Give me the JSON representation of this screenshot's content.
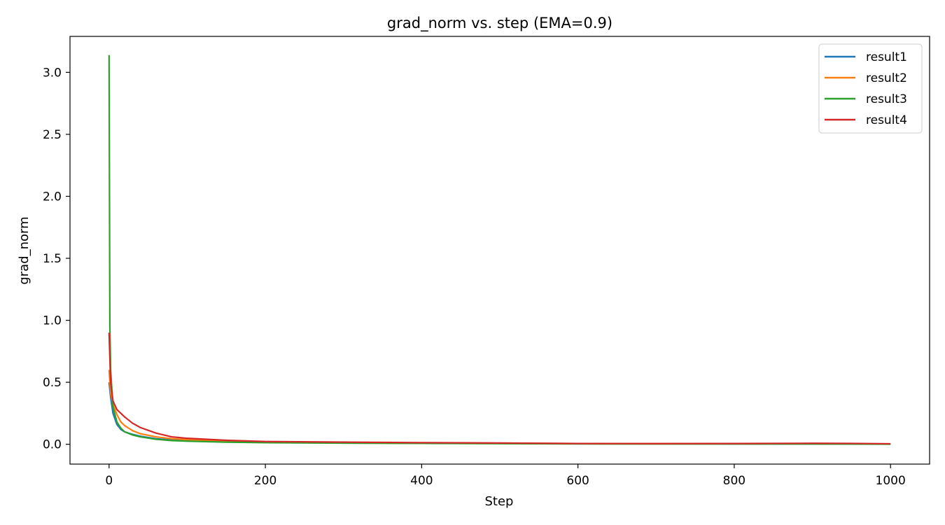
{
  "chart_data": {
    "type": "line",
    "title": "grad_norm vs. step (EMA=0.9)",
    "xlabel": "Step",
    "ylabel": "grad_norm",
    "xlim": [
      -50,
      1050
    ],
    "ylim": [
      -0.16,
      3.29
    ],
    "xticks": [
      0,
      200,
      400,
      600,
      800,
      1000
    ],
    "yticks": [
      0.0,
      0.5,
      1.0,
      1.5,
      2.0,
      2.5,
      3.0
    ],
    "xtick_labels": [
      "0",
      "200",
      "400",
      "600",
      "800",
      "1000"
    ],
    "ytick_labels": [
      "0.0",
      "0.5",
      "1.0",
      "1.5",
      "2.0",
      "2.5",
      "3.0"
    ],
    "grid": false,
    "legend_position": "top-right",
    "series": [
      {
        "name": "result1",
        "color": "#1f77b4",
        "points": [
          [
            0,
            0.5
          ],
          [
            2,
            0.38
          ],
          [
            5,
            0.25
          ],
          [
            10,
            0.16
          ],
          [
            15,
            0.12
          ],
          [
            20,
            0.1
          ],
          [
            30,
            0.08
          ],
          [
            40,
            0.065
          ],
          [
            60,
            0.045
          ],
          [
            80,
            0.035
          ],
          [
            100,
            0.03
          ],
          [
            150,
            0.022
          ],
          [
            200,
            0.018
          ],
          [
            300,
            0.012
          ],
          [
            400,
            0.01
          ],
          [
            500,
            0.008
          ],
          [
            600,
            0.005
          ],
          [
            700,
            0.004
          ],
          [
            800,
            0.003
          ],
          [
            900,
            0.003
          ],
          [
            1000,
            0.002
          ]
        ]
      },
      {
        "name": "result2",
        "color": "#ff7f0e",
        "points": [
          [
            0,
            0.6
          ],
          [
            2,
            0.42
          ],
          [
            5,
            0.32
          ],
          [
            10,
            0.24
          ],
          [
            15,
            0.18
          ],
          [
            20,
            0.15
          ],
          [
            30,
            0.11
          ],
          [
            40,
            0.085
          ],
          [
            60,
            0.06
          ],
          [
            80,
            0.045
          ],
          [
            100,
            0.037
          ],
          [
            150,
            0.027
          ],
          [
            200,
            0.02
          ],
          [
            300,
            0.014
          ],
          [
            400,
            0.011
          ],
          [
            500,
            0.009
          ],
          [
            600,
            0.006
          ],
          [
            700,
            0.005
          ],
          [
            800,
            0.004
          ],
          [
            900,
            0.004
          ],
          [
            1000,
            0.003
          ]
        ]
      },
      {
        "name": "result3",
        "color": "#2ca02c",
        "points": [
          [
            0,
            3.14
          ],
          [
            1,
            0.95
          ],
          [
            2,
            0.6
          ],
          [
            5,
            0.3
          ],
          [
            10,
            0.18
          ],
          [
            15,
            0.13
          ],
          [
            20,
            0.1
          ],
          [
            30,
            0.075
          ],
          [
            40,
            0.06
          ],
          [
            60,
            0.04
          ],
          [
            80,
            0.03
          ],
          [
            100,
            0.025
          ],
          [
            150,
            0.017
          ],
          [
            200,
            0.013
          ],
          [
            300,
            0.009
          ],
          [
            400,
            0.007
          ],
          [
            500,
            0.005
          ],
          [
            600,
            0.003
          ],
          [
            700,
            0.002
          ],
          [
            800,
            0.002
          ],
          [
            900,
            0.002
          ],
          [
            1000,
            0.001
          ]
        ]
      },
      {
        "name": "result4",
        "color": "#d62728",
        "points": [
          [
            0,
            0.9
          ],
          [
            2,
            0.5
          ],
          [
            5,
            0.35
          ],
          [
            10,
            0.28
          ],
          [
            20,
            0.22
          ],
          [
            30,
            0.17
          ],
          [
            40,
            0.135
          ],
          [
            60,
            0.09
          ],
          [
            80,
            0.06
          ],
          [
            100,
            0.048
          ],
          [
            150,
            0.032
          ],
          [
            200,
            0.022
          ],
          [
            300,
            0.017
          ],
          [
            400,
            0.013
          ],
          [
            500,
            0.01
          ],
          [
            600,
            0.006
          ],
          [
            700,
            0.005
          ],
          [
            800,
            0.006
          ],
          [
            900,
            0.008
          ],
          [
            950,
            0.007
          ],
          [
            1000,
            0.004
          ]
        ]
      }
    ]
  }
}
